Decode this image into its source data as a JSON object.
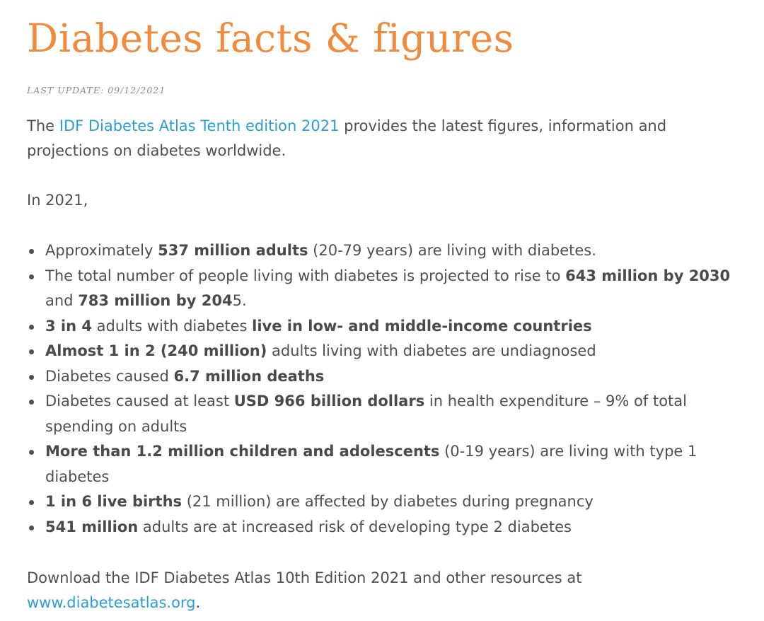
{
  "title": "Diabetes facts & figures",
  "last_update": "LAST UPDATE: 09/12/2021",
  "intro": {
    "prefix": "The ",
    "link": "IDF Diabetes Atlas Tenth edition 2021",
    "suffix": " provides the latest figures, information and projections on diabetes worldwide."
  },
  "year_line": "In 2021,",
  "facts": [
    {
      "segments": [
        {
          "text": "Approximately ",
          "bold": false
        },
        {
          "text": "537 million adults",
          "bold": true
        },
        {
          "text": " (20-79 years) are living with diabetes.",
          "bold": false
        }
      ]
    },
    {
      "segments": [
        {
          "text": "The total number of people living with diabetes is projected to rise to ",
          "bold": false
        },
        {
          "text": "643 million by 2030",
          "bold": true
        },
        {
          "text": " and ",
          "bold": false
        },
        {
          "text": "783 million by 204",
          "bold": true
        },
        {
          "text": "5.",
          "bold": false
        }
      ]
    },
    {
      "segments": [
        {
          "text": "3 in 4",
          "bold": true
        },
        {
          "text": " adults with diabetes ",
          "bold": false
        },
        {
          "text": "live in low- and middle-income countries",
          "bold": true
        }
      ]
    },
    {
      "segments": [
        {
          "text": "Almost 1 in 2 (240 million)",
          "bold": true
        },
        {
          "text": " adults living with diabetes are undiagnosed",
          "bold": false
        }
      ]
    },
    {
      "segments": [
        {
          "text": "Diabetes caused ",
          "bold": false
        },
        {
          "text": "6.7 million deaths",
          "bold": true
        }
      ]
    },
    {
      "segments": [
        {
          "text": "Diabetes caused at least ",
          "bold": false
        },
        {
          "text": "USD 966 billion dollars",
          "bold": true
        },
        {
          "text": " in health expenditure – 9% of total spending on adults",
          "bold": false
        }
      ]
    },
    {
      "segments": [
        {
          "text": "More than 1.2 million children and adolescents",
          "bold": true
        },
        {
          "text": " (0-19 years) are living with type 1 diabetes",
          "bold": false
        }
      ]
    },
    {
      "segments": [
        {
          "text": "1 in 6 live births",
          "bold": true
        },
        {
          "text": " (21 million) are affected by diabetes during pregnancy",
          "bold": false
        }
      ]
    },
    {
      "segments": [
        {
          "text": "541 million",
          "bold": true
        },
        {
          "text": " adults are at increased risk of developing type 2 diabetes",
          "bold": false
        }
      ]
    }
  ],
  "download": {
    "text": "Download the IDF Diabetes Atlas 10th Edition 2021 and other resources at ",
    "link": "www.diabetesatlas.org",
    "suffix": "."
  },
  "colors": {
    "title": "#f08a3c",
    "link": "#2a9fd6",
    "text": "#4f4f4f",
    "meta": "#8a8a8a"
  }
}
